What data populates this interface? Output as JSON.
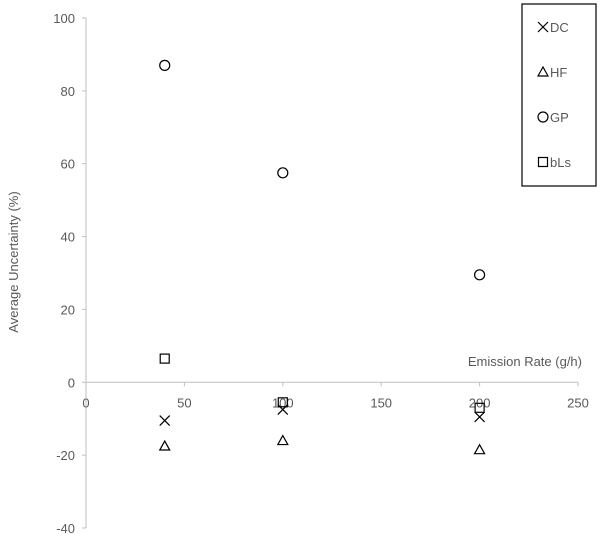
{
  "chart_data": {
    "type": "scatter",
    "title": "",
    "xlabel": "Emission Rate (g/h)",
    "ylabel": "Average Uncertainty (%)",
    "xlim": [
      0,
      250
    ],
    "ylim": [
      -40,
      100
    ],
    "x_ticks": [
      "0",
      "50",
      "100",
      "150",
      "200",
      "250"
    ],
    "y_ticks": [
      "-40",
      "-20",
      "0",
      "20",
      "40",
      "60",
      "80",
      "100"
    ],
    "grid": false,
    "legend_position": "top-right",
    "series": [
      {
        "name": "DC",
        "marker": "x",
        "points": [
          {
            "x": 40,
            "y": -10.5
          },
          {
            "x": 100,
            "y": -7.5
          },
          {
            "x": 200,
            "y": -9.5
          }
        ]
      },
      {
        "name": "HF",
        "marker": "triangle",
        "points": [
          {
            "x": 40,
            "y": -17.5
          },
          {
            "x": 100,
            "y": -16
          },
          {
            "x": 200,
            "y": -18.5
          }
        ]
      },
      {
        "name": "GP",
        "marker": "circle",
        "points": [
          {
            "x": 40,
            "y": 87
          },
          {
            "x": 100,
            "y": 57.5
          },
          {
            "x": 200,
            "y": 29.5
          }
        ]
      },
      {
        "name": "bLs",
        "marker": "square",
        "points": [
          {
            "x": 40,
            "y": 6.5
          },
          {
            "x": 100,
            "y": -5.5
          },
          {
            "x": 200,
            "y": -7
          }
        ]
      }
    ]
  }
}
